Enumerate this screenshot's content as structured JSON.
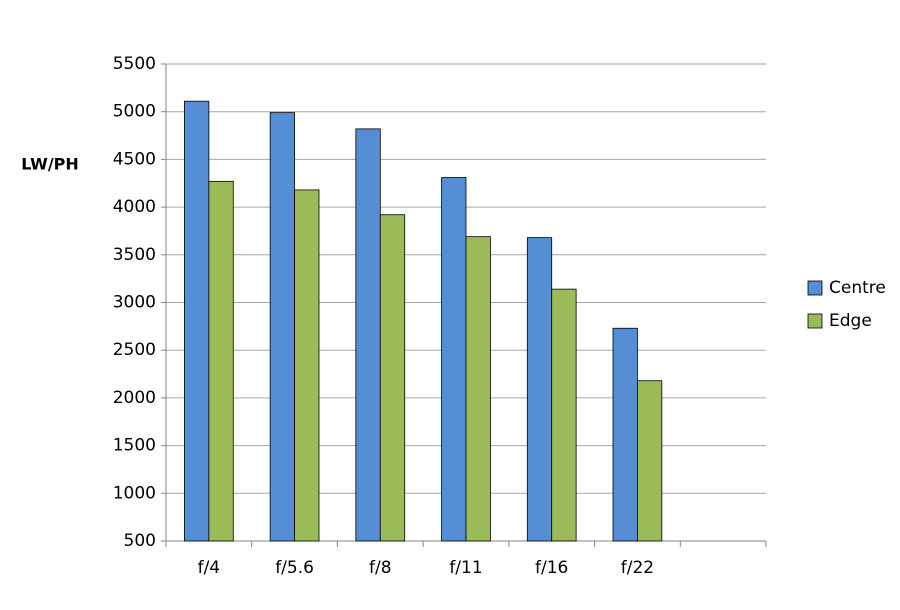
{
  "chart_data": {
    "type": "bar",
    "ylabel": "LW/PH",
    "categories": [
      "f/4",
      "f/5.6",
      "f/8",
      "f/11",
      "f/16",
      "f/22",
      null
    ],
    "series": [
      {
        "name": "Centre",
        "color": "#558ed5",
        "values": [
          5110,
          4990,
          4820,
          4310,
          3680,
          2730,
          null
        ]
      },
      {
        "name": "Edge",
        "color": "#9bbb59",
        "values": [
          4270,
          4180,
          3920,
          3690,
          3140,
          2180,
          null
        ]
      }
    ],
    "ylim": [
      500,
      5500
    ],
    "yticks": [
      500,
      1000,
      1500,
      2000,
      2500,
      3000,
      3500,
      4000,
      4500,
      5000,
      5500
    ],
    "grid": true,
    "legend": "right"
  }
}
